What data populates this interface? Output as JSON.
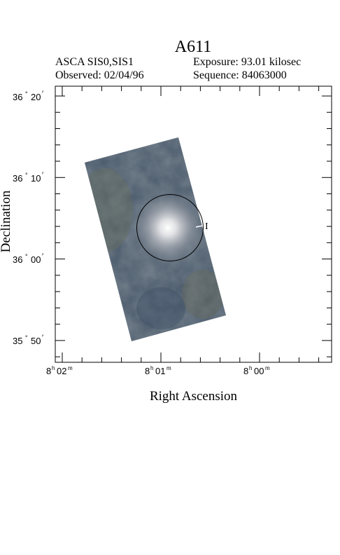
{
  "header": {
    "title": "A611",
    "instrument": "ASCA SIS0,SIS1",
    "observed": "Observed: 02/04/96",
    "exposure": "Exposure: 93.01 kilosec",
    "sequence": "Sequence: 84063000"
  },
  "axes": {
    "xlabel": "Right Ascension",
    "ylabel": "Declination",
    "dec_ticks": [
      {
        "deg": "36",
        "min": "20"
      },
      {
        "deg": "36",
        "min": "10"
      },
      {
        "deg": "36",
        "min": "00"
      },
      {
        "deg": "35",
        "min": "50"
      }
    ],
    "ra_ticks": [
      {
        "h": "8",
        "m": "02"
      },
      {
        "h": "8",
        "m": "01"
      },
      {
        "h": "8",
        "m": "00"
      }
    ]
  },
  "annotations": {
    "marker": "I"
  },
  "colors": {
    "field_dark": "#3f4f66",
    "field_mid": "#5b6a78",
    "field_olive": "#6a7060",
    "cluster_core": "#ffffff"
  }
}
